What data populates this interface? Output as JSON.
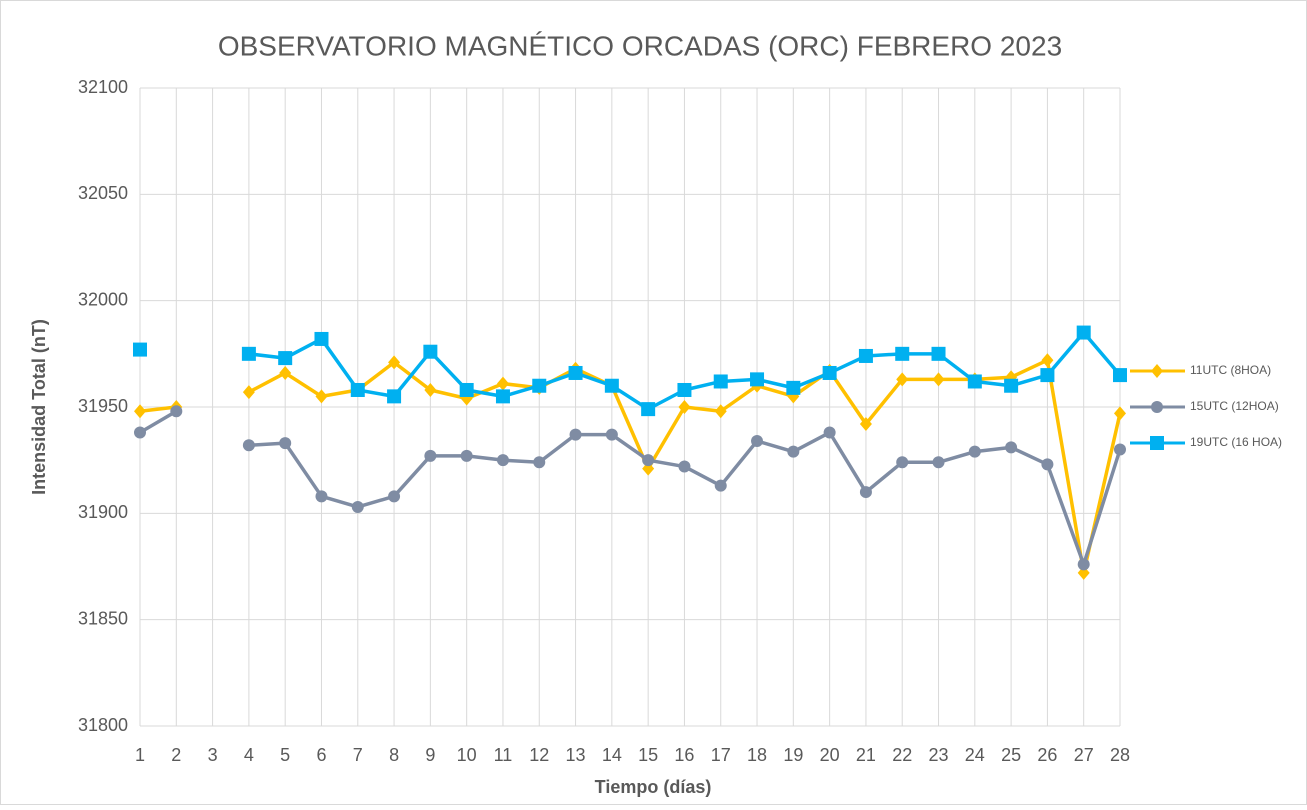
{
  "chart_data": {
    "type": "line",
    "title": "OBSERVATORIO MAGNÉTICO ORCADAS (ORC) FEBRERO 2023",
    "x_label": "Tiempo (días)",
    "y_label": "Intensidad Total (nT)",
    "x": [
      1,
      2,
      3,
      4,
      5,
      6,
      7,
      8,
      9,
      10,
      11,
      12,
      13,
      14,
      15,
      16,
      17,
      18,
      19,
      20,
      21,
      22,
      23,
      24,
      25,
      26,
      27,
      28
    ],
    "xlim": [
      1,
      28
    ],
    "xticks": [
      1,
      2,
      3,
      4,
      5,
      6,
      7,
      8,
      9,
      10,
      11,
      12,
      13,
      14,
      15,
      16,
      17,
      18,
      19,
      20,
      21,
      22,
      23,
      24,
      25,
      26,
      27,
      28
    ],
    "ylim": [
      31800,
      32100
    ],
    "yticks": [
      31800,
      31850,
      31900,
      31950,
      32000,
      32050,
      32100
    ],
    "grid": true,
    "legend": "right",
    "series": [
      {
        "name": "11UTC (8HOA)",
        "color": "#FFC000",
        "marker": "diamond",
        "values": [
          31948,
          31950,
          null,
          31957,
          31966,
          31955,
          31958,
          31971,
          31958,
          31954,
          31961,
          31959,
          31968,
          31960,
          31921,
          31950,
          31948,
          31960,
          31955,
          31967,
          31942,
          31963,
          31963,
          31963,
          31964,
          31972,
          31872,
          31947
        ]
      },
      {
        "name": "15UTC (12HOA)",
        "color": "#7F8CA3",
        "marker": "circle",
        "values": [
          31938,
          31948,
          null,
          31932,
          31933,
          31908,
          31903,
          31908,
          31927,
          31927,
          31925,
          31924,
          31937,
          31937,
          31925,
          31922,
          31913,
          31934,
          31929,
          31938,
          31910,
          31924,
          31924,
          31929,
          31931,
          31923,
          31876,
          31930
        ]
      },
      {
        "name": "19UTC (16 HOA)",
        "color": "#00B0F0",
        "marker": "square",
        "values": [
          31977,
          null,
          null,
          31975,
          31973,
          31982,
          31958,
          31955,
          31976,
          31958,
          31955,
          31960,
          31966,
          31960,
          31949,
          31958,
          31962,
          31963,
          31959,
          31966,
          31974,
          31975,
          31975,
          31962,
          31960,
          31965,
          31985,
          31965
        ]
      }
    ]
  }
}
